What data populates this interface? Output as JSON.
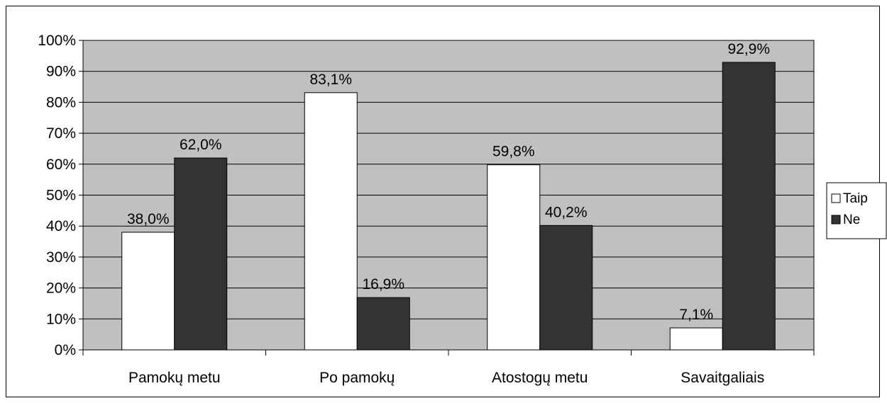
{
  "chart_data": {
    "type": "bar",
    "categories": [
      "Pamokų metu",
      "Po pamokų",
      "Atostogų metu",
      "Savaitgaliais"
    ],
    "series": [
      {
        "name": "Taip",
        "values": [
          38.0,
          83.1,
          59.8,
          7.1
        ],
        "labels": [
          "38,0%",
          "83,1%",
          "59,8%",
          "7,1%"
        ],
        "color": "#ffffff"
      },
      {
        "name": "Ne",
        "values": [
          62.0,
          16.9,
          40.2,
          92.9
        ],
        "labels": [
          "62,0%",
          "16,9%",
          "40,2%",
          "92,9%"
        ],
        "color": "#333333"
      }
    ],
    "y_ticks": [
      "0%",
      "10%",
      "20%",
      "30%",
      "40%",
      "50%",
      "60%",
      "70%",
      "80%",
      "90%",
      "100%"
    ],
    "ylim": [
      0,
      100
    ],
    "grid": true,
    "plot_background": "#c0c0c0",
    "legend_position": "right"
  }
}
